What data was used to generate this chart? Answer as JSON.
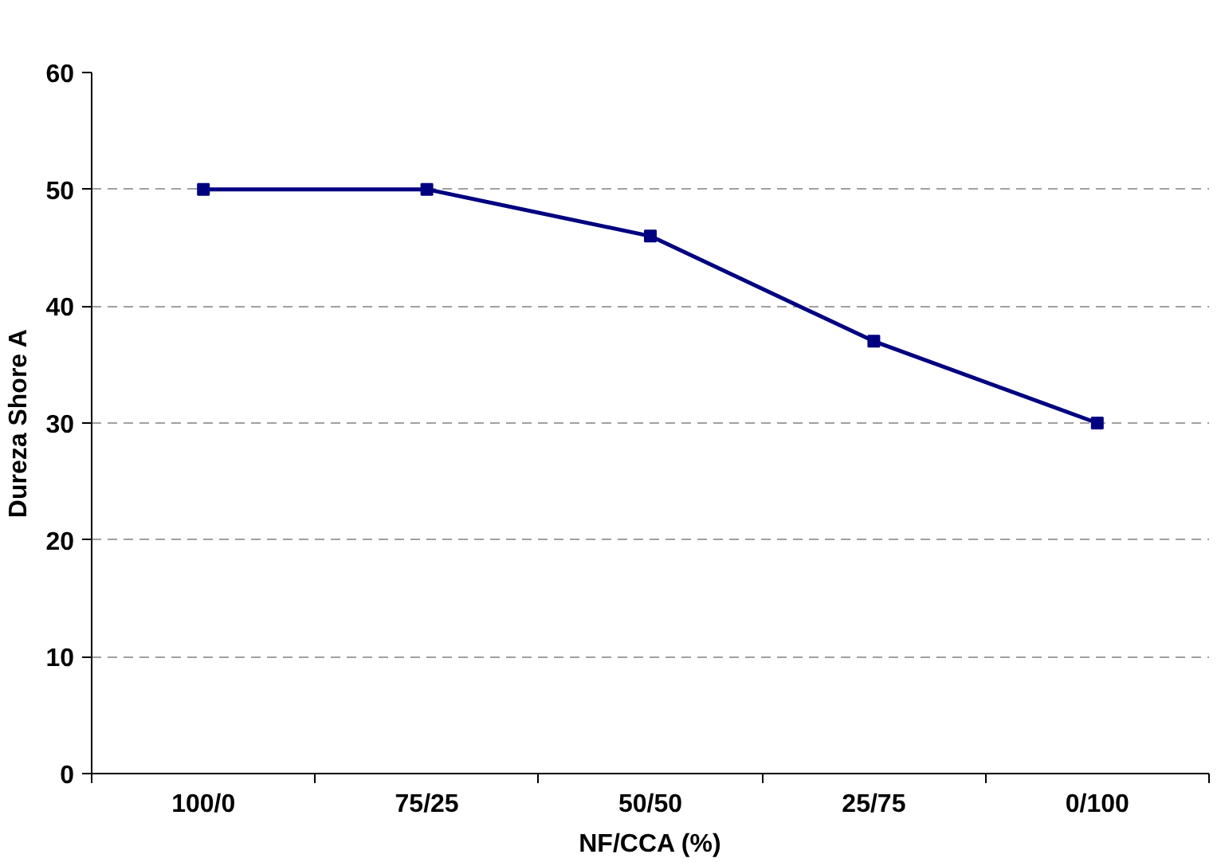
{
  "chart_data": {
    "type": "line",
    "xlabel": "NF/CCA (%)",
    "ylabel": "Dureza Shore A",
    "categories": [
      "100/0",
      "75/25",
      "50/50",
      "25/75",
      "0/100"
    ],
    "series": [
      {
        "color": "#000080",
        "values": [
          50,
          50,
          46,
          37,
          30
        ]
      }
    ],
    "ylim": [
      0,
      60
    ],
    "yticks": [
      0,
      10,
      20,
      30,
      40,
      50,
      60
    ],
    "grid": "y",
    "marker": "square",
    "line_style": "solid"
  }
}
